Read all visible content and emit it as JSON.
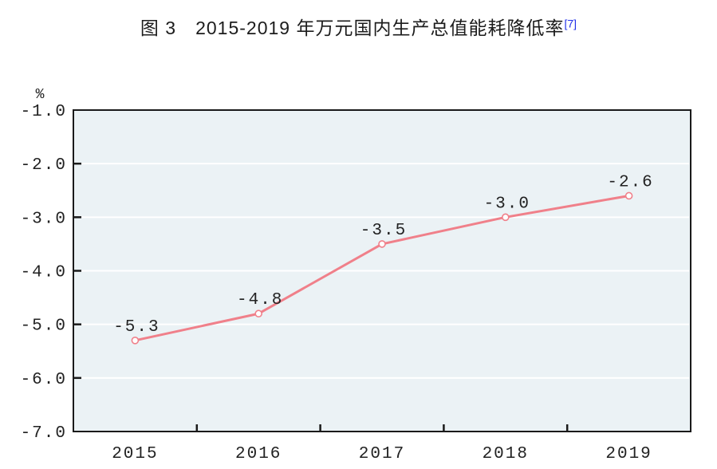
{
  "title": {
    "text": "图 3　2015-2019 年万元国内生产总值能耗降低率",
    "superscript": "[7]"
  },
  "colors": {
    "page_bg": "#ffffff",
    "plot_bg": "#ebf2f5",
    "grid": "#ffffff",
    "axis": "#1a1a1a",
    "line": "#f0808a",
    "marker_fill": "#ffffff",
    "label_text": "#222222",
    "footnote": "#2230e8"
  },
  "chart_data": {
    "type": "line",
    "title": "图 3　2015-2019 年万元国内生产总值能耗降低率[7]",
    "categories": [
      "2015",
      "2016",
      "2017",
      "2018",
      "2019"
    ],
    "values": [
      -5.3,
      -4.8,
      -3.5,
      -3.0,
      -2.6
    ],
    "data_labels": [
      "-5.3",
      "-4.8",
      "-3.5",
      "-3.0",
      "-2.6"
    ],
    "unit_label": "%",
    "xlabel": "",
    "ylabel": "%",
    "y_ticks": [
      "-1.0",
      "-2.0",
      "-3.0",
      "-4.0",
      "-5.0",
      "-6.0",
      "-7.0"
    ],
    "ylim": [
      -7.0,
      -1.0
    ],
    "grid": true,
    "legend": "none",
    "marker": "open-circle"
  }
}
